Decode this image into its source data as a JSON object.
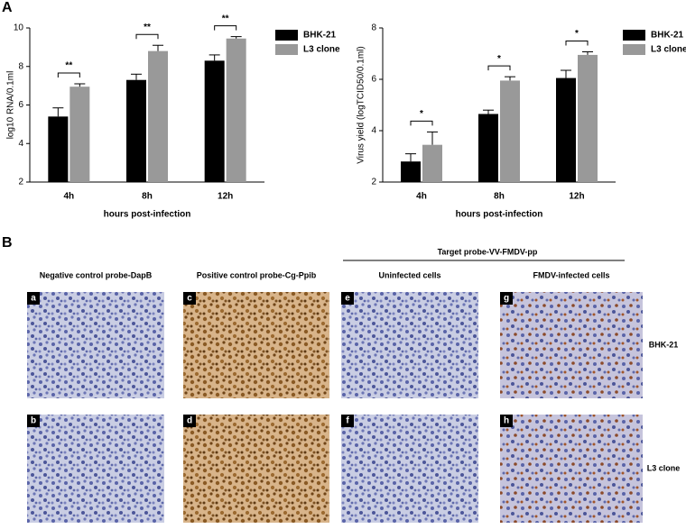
{
  "chart_data": [
    {
      "type": "bar",
      "panel": "A",
      "y_label": "log10 RNA/0.1ml",
      "x_label": "hours post-infection",
      "categories": [
        "4h",
        "8h",
        "12h"
      ],
      "series": [
        {
          "name": "BHK-21",
          "color": "#000000",
          "values": [
            5.4,
            7.3,
            8.3
          ],
          "errors": [
            0.45,
            0.3,
            0.3
          ]
        },
        {
          "name": "L3 clone",
          "color": "#999999",
          "values": [
            6.95,
            8.8,
            9.45
          ],
          "errors": [
            0.15,
            0.3,
            0.1
          ]
        }
      ],
      "significance": [
        "**",
        "**",
        "**"
      ],
      "ylim": [
        2,
        10
      ],
      "yticks": [
        2,
        4,
        6,
        8,
        10
      ]
    },
    {
      "type": "bar",
      "y_label": "Virus yield (logTCID50/0.1ml)",
      "x_label": "hours post-infection",
      "categories": [
        "4h",
        "8h",
        "12h"
      ],
      "series": [
        {
          "name": "BHK-21",
          "color": "#000000",
          "values": [
            2.8,
            4.65,
            6.05
          ],
          "errors": [
            0.3,
            0.15,
            0.3
          ]
        },
        {
          "name": "L3 clone",
          "color": "#999999",
          "values": [
            3.45,
            5.95,
            6.95
          ],
          "errors": [
            0.5,
            0.15,
            0.12
          ]
        }
      ],
      "significance": [
        "*",
        "*",
        "*"
      ],
      "ylim": [
        2,
        8
      ],
      "yticks": [
        2,
        4,
        6,
        8
      ]
    }
  ],
  "panel_b": {
    "label": "B",
    "group_header": "Target probe-VV-FMDV-pp",
    "columns": [
      "Negative control probe-DapB",
      "Positive control probe-Cg-Ppib",
      "Uninfected cells",
      "FMDV-infected cells"
    ],
    "rows": [
      "BHK-21",
      "L3 clone"
    ],
    "image_letters": [
      [
        "a",
        "c",
        "e",
        "g"
      ],
      [
        "b",
        "d",
        "f",
        "h"
      ]
    ]
  }
}
